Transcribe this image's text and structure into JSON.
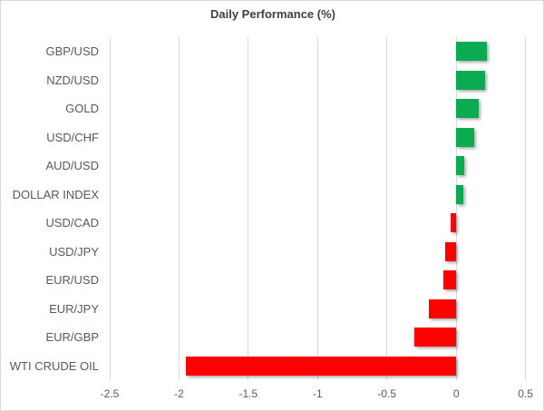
{
  "chart_data": {
    "type": "bar",
    "orientation": "horizontal",
    "title": "Daily Performance (%)",
    "categories": [
      "GBP/USD",
      "NZD/USD",
      "GOLD",
      "USD/CHF",
      "AUD/USD",
      "DOLLAR INDEX",
      "USD/CAD",
      "USD/JPY",
      "EUR/USD",
      "EUR/JPY",
      "EUR/GBP",
      "WTI CRUDE OIL"
    ],
    "values": [
      0.22,
      0.21,
      0.16,
      0.13,
      0.06,
      0.05,
      -0.04,
      -0.08,
      -0.09,
      -0.2,
      -0.3,
      -1.95
    ],
    "xlim": [
      -2.5,
      0.5
    ],
    "xticks": [
      -2.5,
      -2,
      -1.5,
      -1,
      -0.5,
      0,
      0.5
    ],
    "xtick_labels": [
      "-2.5",
      "-2",
      "-1.5",
      "-1",
      "-0.5",
      "0",
      "0.5"
    ],
    "grid": "vertical",
    "legend": "none",
    "positive_color": "#0cab52",
    "negative_color": "#ff0000",
    "gridline_color": "#d9d9d9",
    "title_color": "#404040",
    "label_color": "#595959"
  }
}
